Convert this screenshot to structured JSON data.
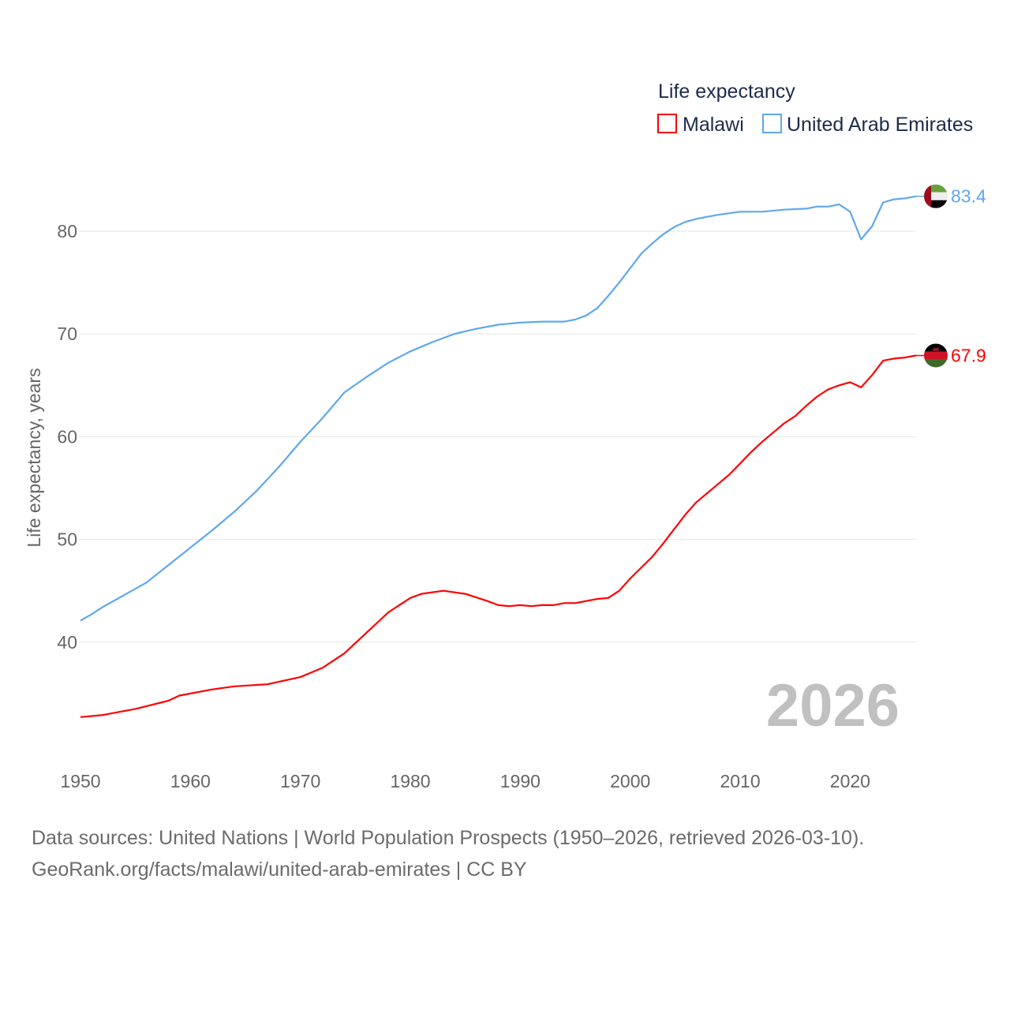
{
  "chart_data": {
    "type": "line",
    "title": "Life expectancy",
    "ylabel": "Life expectancy, years",
    "xlabel": "",
    "xlim": [
      1950,
      2026
    ],
    "ylim": [
      30,
      85
    ],
    "yticks": [
      40,
      50,
      60,
      70,
      80
    ],
    "xticks": [
      1950,
      1960,
      1970,
      1980,
      1990,
      2000,
      2010,
      2020
    ],
    "grid": true,
    "legend_position": "top-right",
    "current_year_label": "2026",
    "series": [
      {
        "name": "Malawi",
        "color": "#ff0000",
        "end_label": "67.9",
        "flag": "malawi-flag",
        "points": [
          [
            1950,
            32.7
          ],
          [
            1952,
            32.9
          ],
          [
            1955,
            33.5
          ],
          [
            1958,
            34.3
          ],
          [
            1959,
            34.8
          ],
          [
            1962,
            35.4
          ],
          [
            1964,
            35.7
          ],
          [
            1967,
            35.9
          ],
          [
            1970,
            36.6
          ],
          [
            1972,
            37.5
          ],
          [
            1974,
            38.9
          ],
          [
            1976,
            40.9
          ],
          [
            1978,
            42.9
          ],
          [
            1980,
            44.3
          ],
          [
            1981,
            44.7
          ],
          [
            1983,
            45.0
          ],
          [
            1985,
            44.7
          ],
          [
            1987,
            44.0
          ],
          [
            1988,
            43.6
          ],
          [
            1989,
            43.5
          ],
          [
            1990,
            43.6
          ],
          [
            1991,
            43.5
          ],
          [
            1992,
            43.6
          ],
          [
            1993,
            43.6
          ],
          [
            1994,
            43.8
          ],
          [
            1995,
            43.8
          ],
          [
            1997,
            44.2
          ],
          [
            1998,
            44.3
          ],
          [
            1999,
            45.0
          ],
          [
            2000,
            46.2
          ],
          [
            2002,
            48.3
          ],
          [
            2003,
            49.6
          ],
          [
            2004,
            51.0
          ],
          [
            2005,
            52.4
          ],
          [
            2006,
            53.6
          ],
          [
            2007,
            54.5
          ],
          [
            2008,
            55.4
          ],
          [
            2009,
            56.3
          ],
          [
            2010,
            57.4
          ],
          [
            2011,
            58.5
          ],
          [
            2012,
            59.5
          ],
          [
            2013,
            60.4
          ],
          [
            2014,
            61.3
          ],
          [
            2015,
            62.0
          ],
          [
            2016,
            63.0
          ],
          [
            2017,
            63.9
          ],
          [
            2018,
            64.6
          ],
          [
            2019,
            65.0
          ],
          [
            2020,
            65.3
          ],
          [
            2021,
            64.8
          ],
          [
            2022,
            66.0
          ],
          [
            2023,
            67.4
          ],
          [
            2024,
            67.6
          ],
          [
            2025,
            67.7
          ],
          [
            2026,
            67.9
          ]
        ]
      },
      {
        "name": "United Arab Emirates",
        "color": "#5ea8ee",
        "end_label": "83.4",
        "flag": "uae-flag",
        "points": [
          [
            1950,
            42.1
          ],
          [
            1951,
            42.7
          ],
          [
            1952,
            43.4
          ],
          [
            1954,
            44.6
          ],
          [
            1956,
            45.8
          ],
          [
            1958,
            47.5
          ],
          [
            1960,
            49.2
          ],
          [
            1962,
            50.9
          ],
          [
            1964,
            52.7
          ],
          [
            1966,
            54.7
          ],
          [
            1968,
            57.0
          ],
          [
            1970,
            59.5
          ],
          [
            1972,
            61.8
          ],
          [
            1974,
            64.3
          ],
          [
            1976,
            65.8
          ],
          [
            1978,
            67.2
          ],
          [
            1980,
            68.3
          ],
          [
            1982,
            69.2
          ],
          [
            1984,
            70.0
          ],
          [
            1986,
            70.5
          ],
          [
            1988,
            70.9
          ],
          [
            1990,
            71.1
          ],
          [
            1992,
            71.2
          ],
          [
            1994,
            71.2
          ],
          [
            1995,
            71.4
          ],
          [
            1996,
            71.8
          ],
          [
            1997,
            72.5
          ],
          [
            1998,
            73.7
          ],
          [
            1999,
            75.0
          ],
          [
            2000,
            76.4
          ],
          [
            2001,
            77.8
          ],
          [
            2002,
            78.8
          ],
          [
            2003,
            79.7
          ],
          [
            2004,
            80.4
          ],
          [
            2005,
            80.9
          ],
          [
            2006,
            81.2
          ],
          [
            2008,
            81.6
          ],
          [
            2010,
            81.9
          ],
          [
            2012,
            81.9
          ],
          [
            2014,
            82.1
          ],
          [
            2016,
            82.2
          ],
          [
            2017,
            82.4
          ],
          [
            2018,
            82.4
          ],
          [
            2019,
            82.6
          ],
          [
            2020,
            81.9
          ],
          [
            2021,
            79.2
          ],
          [
            2022,
            80.5
          ],
          [
            2023,
            82.8
          ],
          [
            2024,
            83.1
          ],
          [
            2025,
            83.2
          ],
          [
            2026,
            83.4
          ]
        ]
      }
    ]
  },
  "footer": {
    "line1": "Data sources: United Nations | World Population Prospects (1950–2026, retrieved 2026-03-10).",
    "line2": "GeoRank.org/facts/malawi/united-arab-emirates | CC BY"
  }
}
